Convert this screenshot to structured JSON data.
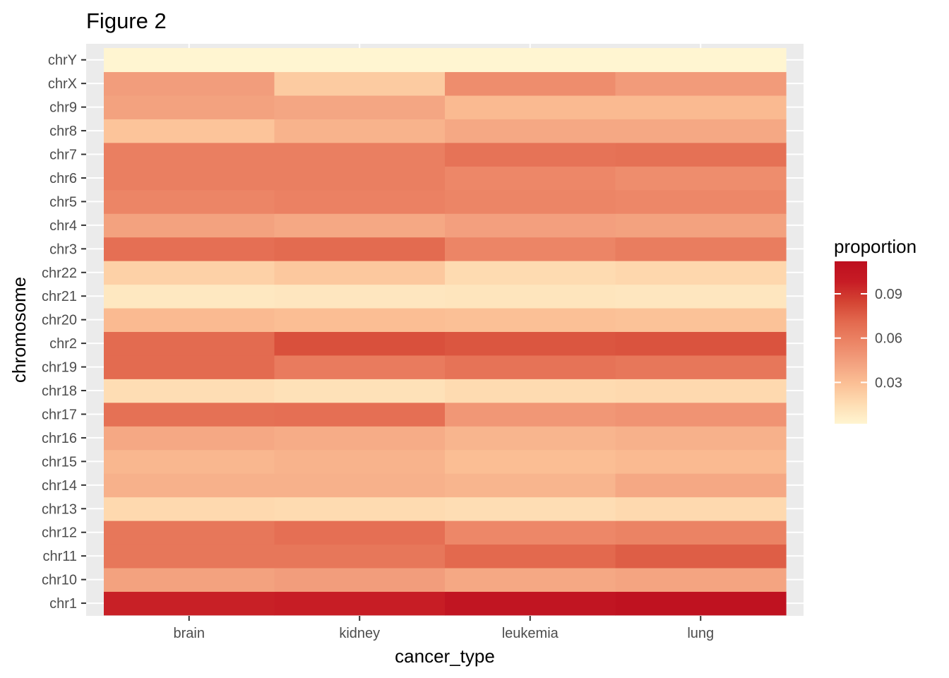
{
  "chart_data": {
    "type": "heatmap",
    "title": "Figure 2",
    "xlabel": "cancer_type",
    "ylabel": "chromosome",
    "x": [
      "brain",
      "kidney",
      "leukemia",
      "lung"
    ],
    "y": [
      "chr1",
      "chr10",
      "chr11",
      "chr12",
      "chr13",
      "chr14",
      "chr15",
      "chr16",
      "chr17",
      "chr18",
      "chr19",
      "chr2",
      "chr20",
      "chr21",
      "chr22",
      "chr3",
      "chr4",
      "chr5",
      "chr6",
      "chr7",
      "chr8",
      "chr9",
      "chrX",
      "chrY"
    ],
    "values": [
      [
        0.097,
        0.098,
        0.106,
        0.109
      ],
      [
        0.043,
        0.045,
        0.04,
        0.042
      ],
      [
        0.064,
        0.064,
        0.071,
        0.075
      ],
      [
        0.064,
        0.068,
        0.056,
        0.058
      ],
      [
        0.017,
        0.016,
        0.015,
        0.017
      ],
      [
        0.036,
        0.036,
        0.034,
        0.04
      ],
      [
        0.033,
        0.035,
        0.03,
        0.032
      ],
      [
        0.04,
        0.038,
        0.034,
        0.036
      ],
      [
        0.067,
        0.068,
        0.048,
        0.05
      ],
      [
        0.015,
        0.013,
        0.016,
        0.017
      ],
      [
        0.07,
        0.062,
        0.066,
        0.064
      ],
      [
        0.07,
        0.08,
        0.078,
        0.079
      ],
      [
        0.032,
        0.03,
        0.029,
        0.028
      ],
      [
        0.009,
        0.01,
        0.011,
        0.01
      ],
      [
        0.021,
        0.025,
        0.016,
        0.018
      ],
      [
        0.068,
        0.07,
        0.057,
        0.061
      ],
      [
        0.043,
        0.04,
        0.044,
        0.043
      ],
      [
        0.057,
        0.059,
        0.057,
        0.056
      ],
      [
        0.06,
        0.06,
        0.056,
        0.053
      ],
      [
        0.06,
        0.06,
        0.066,
        0.067
      ],
      [
        0.027,
        0.035,
        0.04,
        0.04
      ],
      [
        0.043,
        0.041,
        0.032,
        0.032
      ],
      [
        0.045,
        0.024,
        0.053,
        0.046
      ],
      [
        0.002,
        0.002,
        0.002,
        0.002
      ]
    ],
    "colorbar": {
      "title": "proportion",
      "min": 0.002,
      "max": 0.112,
      "ticks": [
        0.03,
        0.06,
        0.09
      ],
      "tick_labels": [
        "0.03",
        "0.06",
        "0.09"
      ],
      "colors": [
        "#fff5d1",
        "#fedcb2",
        "#fbbf95",
        "#f3a17f",
        "#ec8566",
        "#e36a4f",
        "#d44433",
        "#c71c25",
        "#bd0f1f"
      ]
    },
    "background": "#ebebeb",
    "legend_position": "right",
    "grid": true
  }
}
